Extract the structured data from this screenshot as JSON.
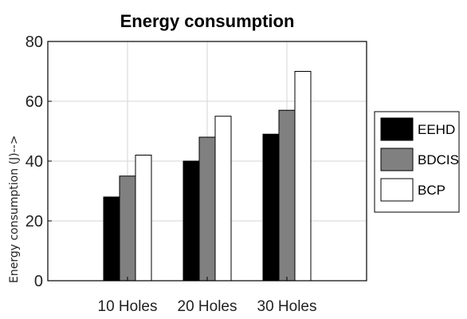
{
  "chart_data": {
    "type": "bar",
    "title": "Energy consumption",
    "xlabel": "",
    "ylabel": "Energy consumption (J)-->",
    "categories": [
      "10 Holes",
      "20 Holes",
      "30 Holes"
    ],
    "series": [
      {
        "name": "EEHD",
        "values": [
          28,
          40,
          49
        ],
        "color": "#000000"
      },
      {
        "name": "BDCIS",
        "values": [
          35,
          48,
          57
        ],
        "color": "#808080"
      },
      {
        "name": "BCP",
        "values": [
          42,
          55,
          70
        ],
        "color": "#ffffff"
      }
    ],
    "ylim": [
      0,
      80
    ],
    "yticks": [
      0,
      20,
      40,
      60,
      80
    ],
    "grid": true,
    "legend_position": "right"
  }
}
